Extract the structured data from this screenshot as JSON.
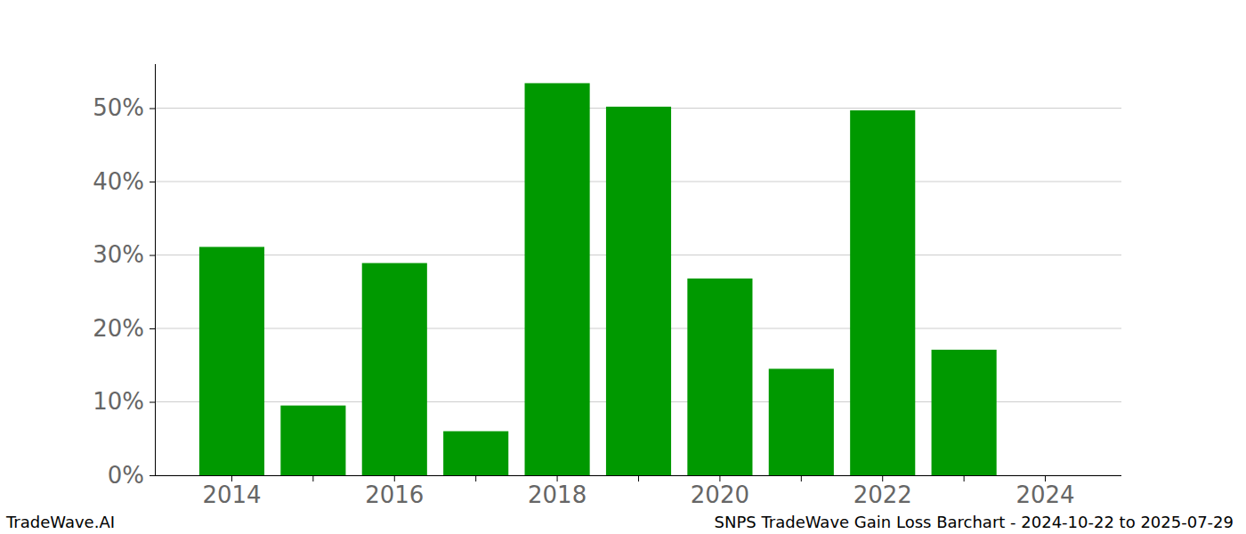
{
  "chart_data": {
    "type": "bar",
    "title": "SNPS TradeWave Gain Loss Barchart - 2024-10-22 to 2025-07-29",
    "source": "TradeWave.AI",
    "categories": [
      "2014",
      null,
      "2016",
      null,
      "2018",
      null,
      "2020",
      null,
      "2022",
      null,
      "2024"
    ],
    "values": [
      31.1,
      9.5,
      28.9,
      6.0,
      53.4,
      50.2,
      26.8,
      14.5,
      49.7,
      17.1,
      null
    ],
    "color": "#009900",
    "ylim": [
      0,
      56
    ],
    "yticks": [
      {
        "value": 0,
        "label": "0%"
      },
      {
        "value": 10,
        "label": "10%"
      },
      {
        "value": 20,
        "label": "20%"
      },
      {
        "value": 30,
        "label": "30%"
      },
      {
        "value": 40,
        "label": "40%"
      },
      {
        "value": 50,
        "label": "50%"
      }
    ],
    "grid": true
  }
}
